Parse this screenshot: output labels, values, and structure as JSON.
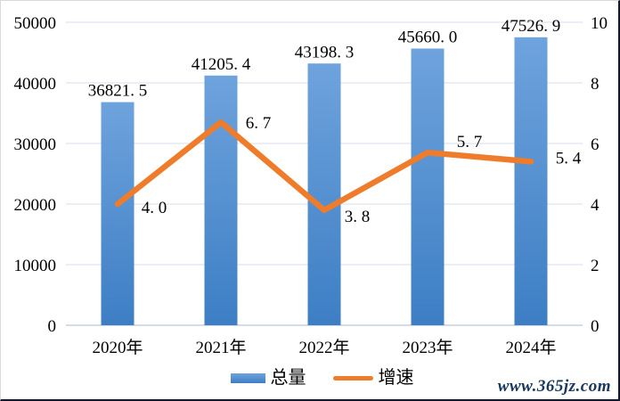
{
  "chart_data": {
    "type": "bar+line",
    "title": "",
    "categories": [
      "2020年",
      "2021年",
      "2022年",
      "2023年",
      "2024年"
    ],
    "series": [
      {
        "name": "总量",
        "type": "bar",
        "axis": "left",
        "values": [
          36821.5,
          41205.4,
          43198.3,
          45660.0,
          47526.9
        ],
        "labels": [
          "36821. 5",
          "41205. 4",
          "43198. 3",
          "45660. 0",
          "47526. 9"
        ]
      },
      {
        "name": "增速",
        "type": "line",
        "axis": "right",
        "values": [
          4.0,
          6.7,
          3.8,
          5.7,
          5.4
        ],
        "labels": [
          "4. 0",
          "6. 7",
          "3. 8",
          "5. 7",
          "5. 4"
        ]
      }
    ],
    "left_axis": {
      "min": 0,
      "max": 50000,
      "step": 10000,
      "ticks": [
        "50000",
        "40000",
        "30000",
        "20000",
        "10000",
        "0"
      ]
    },
    "right_axis": {
      "min": 0,
      "max": 10,
      "step": 2,
      "ticks": [
        "10",
        "8",
        "6",
        "4",
        "2",
        "0"
      ]
    },
    "legend_position": "bottom",
    "grid": "horizontal",
    "colors": {
      "bar_top": "#6ea3dd",
      "bar_bottom": "#3d7ec4",
      "line": "#ee7c2b",
      "grid": "#dfe4ee",
      "baseline": "#d6dce6",
      "text": "#000000"
    }
  },
  "watermark": "www.365jz.com"
}
